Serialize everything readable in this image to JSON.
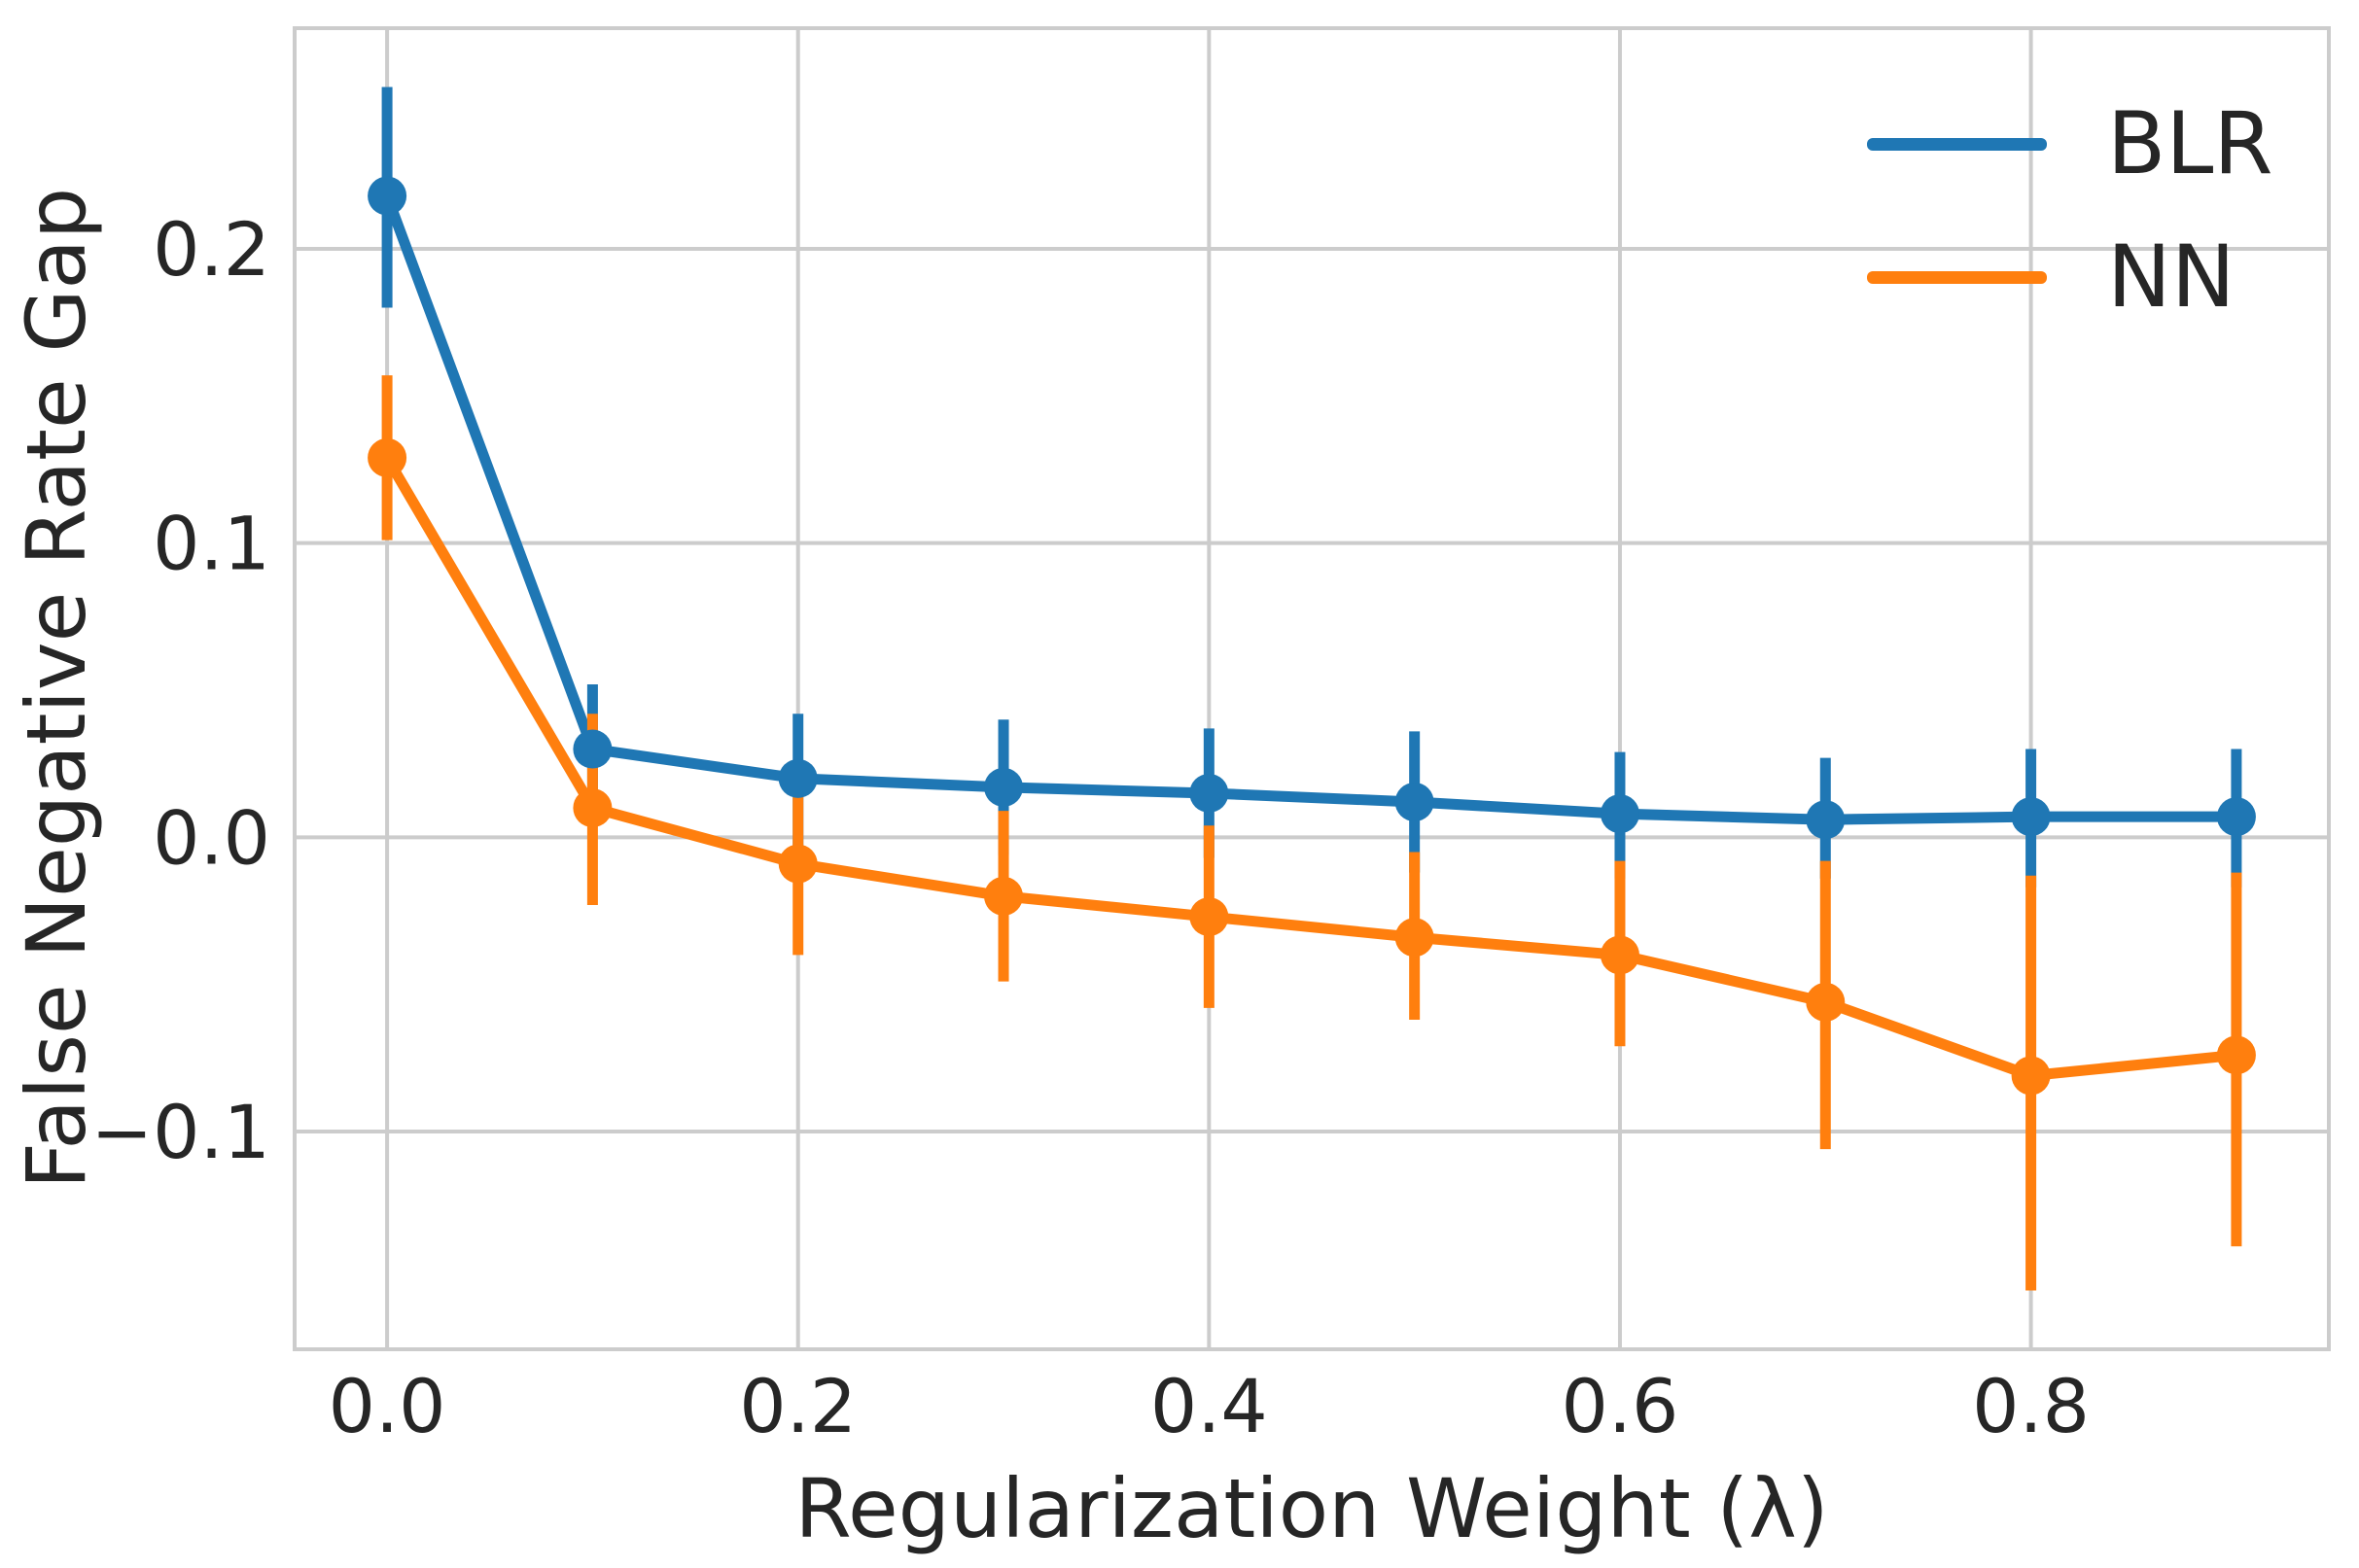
{
  "chart_data": {
    "type": "line",
    "title": "",
    "xlabel": "Regularization Weight (λ)",
    "ylabel": "False Negative Rate Gap",
    "x": [
      0.0,
      0.1,
      0.2,
      0.3,
      0.4,
      0.5,
      0.6,
      0.7,
      0.8,
      0.9
    ],
    "series": [
      {
        "name": "BLR",
        "color": "#1f77b4",
        "values": [
          0.218,
          0.03,
          0.02,
          0.017,
          0.015,
          0.012,
          0.008,
          0.006,
          0.007,
          0.007
        ],
        "err_low": [
          0.18,
          0.008,
          -0.003,
          -0.006,
          -0.007,
          -0.012,
          -0.014,
          -0.014,
          -0.017,
          -0.017
        ],
        "err_high": [
          0.255,
          0.052,
          0.042,
          0.04,
          0.037,
          0.036,
          0.029,
          0.027,
          0.03,
          0.03
        ]
      },
      {
        "name": "NN",
        "color": "#ff7f0e",
        "values": [
          0.129,
          0.01,
          -0.009,
          -0.02,
          -0.027,
          -0.034,
          -0.04,
          -0.056,
          -0.081,
          -0.074
        ],
        "err_low": [
          0.101,
          -0.023,
          -0.04,
          -0.049,
          -0.058,
          -0.062,
          -0.071,
          -0.106,
          -0.154,
          -0.139
        ],
        "err_high": [
          0.157,
          0.042,
          0.022,
          0.009,
          0.004,
          -0.005,
          -0.008,
          -0.008,
          -0.013,
          -0.012
        ]
      }
    ],
    "x_ticks": {
      "values": [
        0.0,
        0.2,
        0.4,
        0.6,
        0.8
      ],
      "labels": [
        "0.0",
        "0.2",
        "0.4",
        "0.6",
        "0.8"
      ]
    },
    "y_ticks": {
      "values": [
        0.2,
        0.1,
        0.0,
        -0.1
      ],
      "labels": [
        "0.2",
        "0.1",
        "0.0",
        "−0.1"
      ]
    },
    "xlim": [
      -0.045,
      0.945
    ],
    "ylim": [
      -0.174,
      0.275
    ],
    "grid": true,
    "legend_position": "upper right",
    "colors": {
      "grid": "#cccccc",
      "text": "#262626",
      "background": "#ffffff"
    }
  }
}
